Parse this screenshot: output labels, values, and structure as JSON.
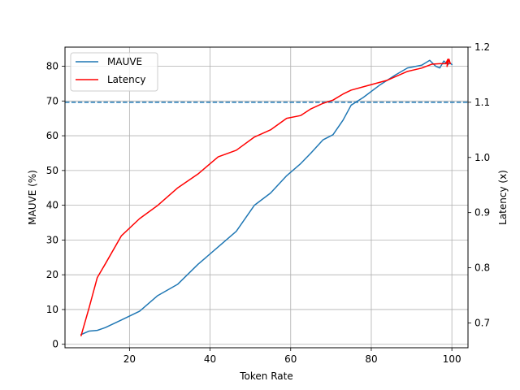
{
  "chart_data": {
    "type": "line",
    "title": "",
    "xlabel": "Token Rate",
    "ylabel_left": "MAUVE (%)",
    "ylabel_right": "Latency (x)",
    "xlim": [
      4,
      104
    ],
    "ylim_left": [
      -1,
      85.5
    ],
    "ylim_right": [
      0.655,
      1.2
    ],
    "x_ticks": [
      20,
      40,
      60,
      80,
      100
    ],
    "y_left_ticks": [
      0,
      10,
      20,
      30,
      40,
      50,
      60,
      70,
      80
    ],
    "y_right_ticks": [
      0.7,
      0.8,
      0.9,
      1.0,
      1.1,
      1.2
    ],
    "x_tick_labels": [
      "20",
      "40",
      "60",
      "80",
      "100"
    ],
    "y_left_tick_labels": [
      "0",
      "10",
      "20",
      "30",
      "40",
      "50",
      "60",
      "70",
      "80"
    ],
    "y_right_tick_labels": [
      "0.7",
      "0.8",
      "0.9",
      "1.0",
      "1.1",
      "1.2"
    ],
    "grid": true,
    "legend_position": "top-left",
    "reference_line": {
      "axis": "right",
      "value": 1.1,
      "style": "dashed",
      "color": "#1f77b4"
    },
    "series": [
      {
        "name": "MAUVE",
        "axis": "left",
        "color": "#1f77b4",
        "x": [
          8,
          10,
          12,
          14,
          18,
          22.5,
          27,
          32,
          37,
          42,
          46.5,
          51,
          55,
          59,
          62.5,
          65,
          68,
          70.5,
          73,
          75,
          78,
          82,
          86,
          89,
          92.5,
          94.5,
          96,
          97,
          98,
          99,
          99.5,
          100
        ],
        "y": [
          2.8,
          3.8,
          4,
          4.8,
          7,
          9.5,
          14,
          17.3,
          23,
          28,
          32.5,
          40,
          43.5,
          48.5,
          52,
          55,
          58.8,
          60.3,
          64.5,
          68.8,
          71,
          74.5,
          77.5,
          79.5,
          80.3,
          81.7,
          80,
          79.5,
          81.5,
          80.5,
          81,
          80.5
        ]
      },
      {
        "name": "Latency",
        "axis": "right",
        "color": "#ff0000",
        "x": [
          8,
          10,
          12,
          14,
          18,
          22.5,
          27,
          32,
          37,
          42,
          46.5,
          51,
          55,
          59,
          62.5,
          65,
          68,
          70.5,
          73,
          75,
          79,
          84,
          89,
          92.5,
          95,
          97,
          98.5,
          99,
          98.8,
          99.3,
          99.6
        ],
        "y": [
          0.677,
          0.728,
          0.782,
          0.807,
          0.858,
          0.889,
          0.913,
          0.945,
          0.97,
          1.001,
          1.013,
          1.037,
          1.05,
          1.071,
          1.076,
          1.088,
          1.098,
          1.104,
          1.115,
          1.122,
          1.13,
          1.14,
          1.156,
          1.162,
          1.169,
          1.17,
          1.17,
          1.178,
          1.165,
          1.178,
          1.17
        ]
      }
    ]
  }
}
